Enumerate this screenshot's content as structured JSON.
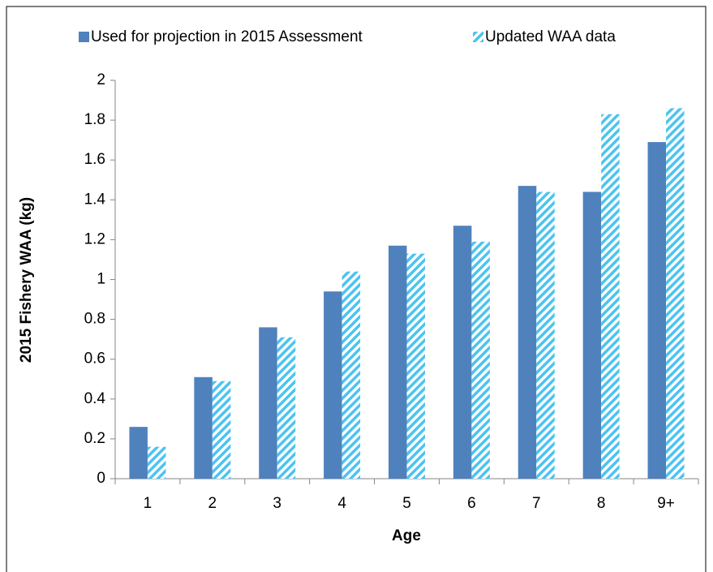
{
  "chart_data": {
    "type": "bar",
    "y_label": "2015 Fishery WAA (kg)",
    "x_label": "Age",
    "categories": [
      "1",
      "2",
      "3",
      "4",
      "5",
      "6",
      "7",
      "8",
      "9+"
    ],
    "series": [
      {
        "name": "Used for projection in 2015 Assessment",
        "color": "#4f81bd",
        "pattern": "solid",
        "values": [
          0.26,
          0.51,
          0.76,
          0.94,
          1.17,
          1.27,
          1.47,
          1.44,
          1.69
        ]
      },
      {
        "name": "Updated WAA data",
        "color": "#4bc3f0",
        "pattern": "hatch",
        "values": [
          0.16,
          0.49,
          0.71,
          1.04,
          1.13,
          1.19,
          1.44,
          1.83,
          1.86
        ]
      }
    ],
    "ylim": [
      0,
      2
    ],
    "yticks": [
      0,
      0.2,
      0.4,
      0.6,
      0.8,
      1,
      1.2,
      1.4,
      1.6,
      1.8,
      2
    ],
    "grid": false,
    "legend": "top"
  }
}
